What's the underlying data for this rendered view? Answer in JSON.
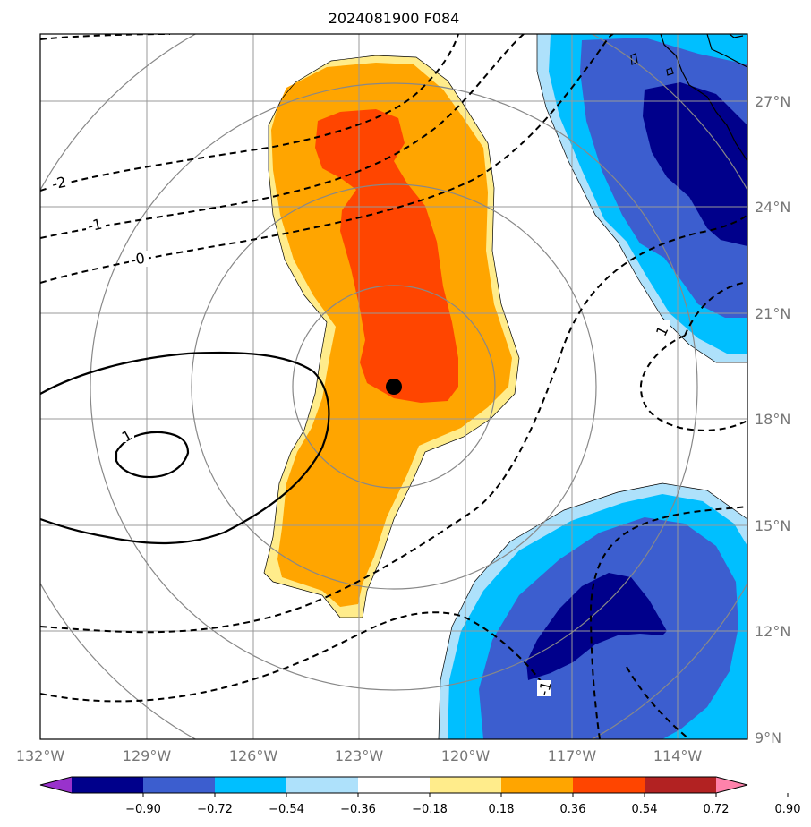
{
  "title": "2024081900 F084",
  "lat_labels": [
    "27°N",
    "24°N",
    "21°N",
    "18°N",
    "15°N",
    "12°N",
    "9°N"
  ],
  "lon_labels": [
    "132°W",
    "129°W",
    "126°W",
    "123°W",
    "120°W",
    "117°W",
    "114°W"
  ],
  "contour_labels": [
    "-2",
    "-1",
    "-0",
    "1",
    "1",
    "-1"
  ],
  "colorbar": {
    "ticks": [
      "−0.90",
      "−0.72",
      "−0.54",
      "−0.36",
      "−0.18",
      "0.18",
      "0.36",
      "0.54",
      "0.72",
      "0.90"
    ],
    "colors": [
      "#9932cc",
      "#00008b",
      "#3c5ecf",
      "#00bfff",
      "#aee1fb",
      "#ffffff",
      "#ffec8b",
      "#ffa500",
      "#ff4500",
      "#b22222",
      "#ff82ab"
    ]
  },
  "storm_center": {
    "label": "",
    "lon": -122.1,
    "lat": 19.0
  },
  "colors": {
    "grid": "#999999",
    "range_rings": "#888888",
    "axis_labels": "#777777"
  }
}
